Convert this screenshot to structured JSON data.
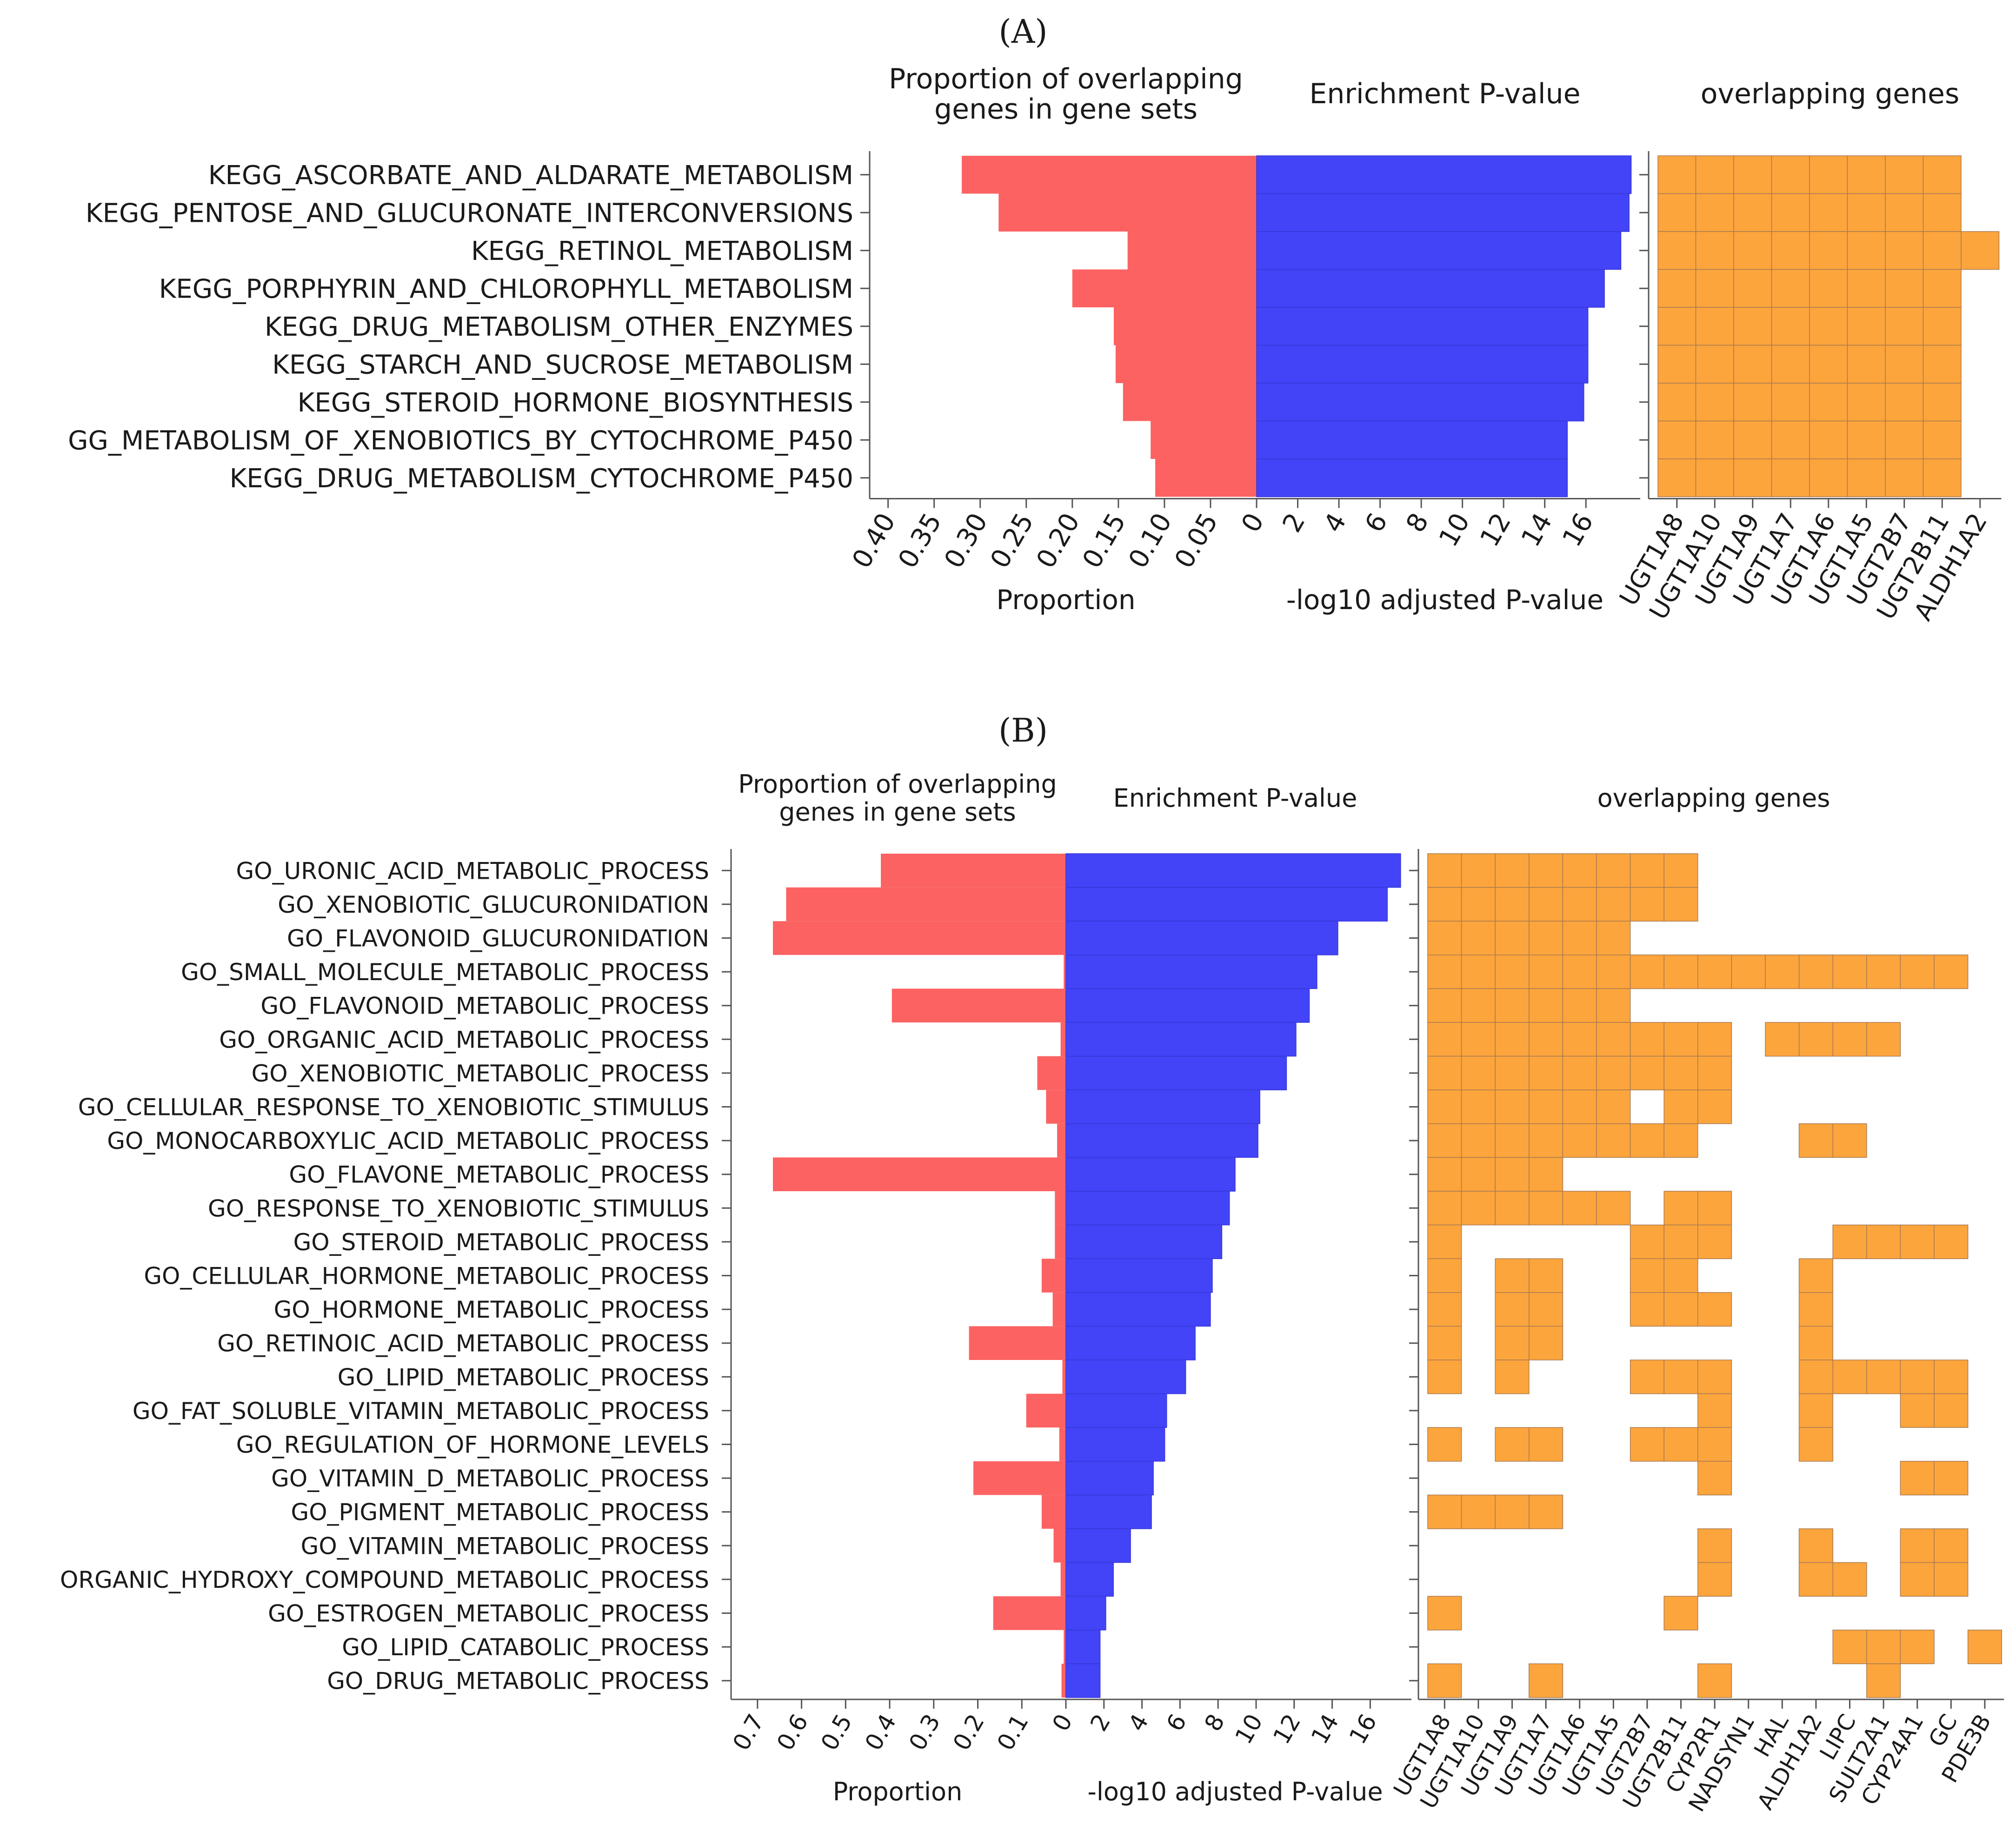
{
  "colors": {
    "proportion_bar": "#fc6262",
    "pvalue_bar": "#4343f7",
    "gene_cell": "#fca53c",
    "gene_cell_border": "#a97a52",
    "axis": "#555555"
  },
  "chart_data": [
    {
      "type": "bar",
      "panel": "(A)",
      "titles": {
        "proportion": [
          "Proportion of overlapping",
          "genes in gene sets"
        ],
        "pvalue": "Enrichment P-value",
        "genes": "overlapping genes"
      },
      "xlabels": {
        "proportion": "Proportion",
        "pvalue": "-log10 adjusted P-value"
      },
      "categories": [
        "KEGG_ASCORBATE_AND_ALDARATE_METABOLISM",
        "KEGG_PENTOSE_AND_GLUCURONATE_INTERCONVERSIONS",
        "KEGG_RETINOL_METABOLISM",
        "KEGG_PORPHYRIN_AND_CHLOROPHYLL_METABOLISM",
        "KEGG_DRUG_METABOLISM_OTHER_ENZYMES",
        "KEGG_STARCH_AND_SUCROSE_METABOLISM",
        "KEGG_STEROID_HORMONE_BIOSYNTHESIS",
        "GG_METABOLISM_OF_XENOBIOTICS_BY_CYTOCHROME_P450",
        "KEGG_DRUG_METABOLISM_CYTOCHROME_P450"
      ],
      "proportion": {
        "values": [
          0.32,
          0.28,
          0.14,
          0.2,
          0.155,
          0.153,
          0.145,
          0.115,
          0.11
        ],
        "xlim": [
          0,
          0.42
        ],
        "ticks": [
          0.4,
          0.35,
          0.3,
          0.25,
          0.2,
          0.15,
          0.1,
          0.05,
          0
        ],
        "tick_labels": [
          "0.40",
          "0.35",
          "0.30",
          "0.25",
          "0.20",
          "0.15",
          "0.10",
          "0.05",
          "0"
        ]
      },
      "pvalue": {
        "values": [
          18.2,
          18.1,
          17.7,
          16.9,
          16.1,
          16.1,
          15.9,
          15.1,
          15.1
        ],
        "xlim": [
          0,
          18.3
        ],
        "ticks": [
          0,
          2,
          4,
          6,
          8,
          10,
          12,
          14,
          16
        ],
        "tick_labels": [
          "0",
          "2",
          "4",
          "6",
          "8",
          "10",
          "12",
          "14",
          "16"
        ]
      },
      "genes": [
        "UGT1A8",
        "UGT1A10",
        "UGT1A9",
        "UGT1A7",
        "UGT1A6",
        "UGT1A5",
        "UGT2B7",
        "UGT2B11",
        "ALDH1A2"
      ],
      "matrix": [
        [
          1,
          1,
          1,
          1,
          1,
          1,
          1,
          1,
          0
        ],
        [
          1,
          1,
          1,
          1,
          1,
          1,
          1,
          1,
          0
        ],
        [
          1,
          1,
          1,
          1,
          1,
          1,
          1,
          1,
          1
        ],
        [
          1,
          1,
          1,
          1,
          1,
          1,
          1,
          1,
          0
        ],
        [
          1,
          1,
          1,
          1,
          1,
          1,
          1,
          1,
          0
        ],
        [
          1,
          1,
          1,
          1,
          1,
          1,
          1,
          1,
          0
        ],
        [
          1,
          1,
          1,
          1,
          1,
          1,
          1,
          1,
          0
        ],
        [
          1,
          1,
          1,
          1,
          1,
          1,
          1,
          1,
          0
        ],
        [
          1,
          1,
          1,
          1,
          1,
          1,
          1,
          1,
          0
        ]
      ]
    },
    {
      "type": "bar",
      "panel": "(B)",
      "titles": {
        "proportion": [
          "Proportion of overlapping",
          "genes in gene sets"
        ],
        "pvalue": "Enrichment P-value",
        "genes": "overlapping genes"
      },
      "xlabels": {
        "proportion": "Proportion",
        "pvalue": "-log10 adjusted P-value"
      },
      "categories": [
        "GO_URONIC_ACID_METABOLIC_PROCESS",
        "GO_XENOBIOTIC_GLUCURONIDATION",
        "GO_FLAVONOID_GLUCURONIDATION",
        "GO_SMALL_MOLECULE_METABOLIC_PROCESS",
        "GO_FLAVONOID_METABOLIC_PROCESS",
        "GO_ORGANIC_ACID_METABOLIC_PROCESS",
        "GO_XENOBIOTIC_METABOLIC_PROCESS",
        "GO_CELLULAR_RESPONSE_TO_XENOBIOTIC_STIMULUS",
        "GO_MONOCARBOXYLIC_ACID_METABOLIC_PROCESS",
        "GO_FLAVONE_METABOLIC_PROCESS",
        "GO_RESPONSE_TO_XENOBIOTIC_STIMULUS",
        "GO_STEROID_METABOLIC_PROCESS",
        "GO_CELLULAR_HORMONE_METABOLIC_PROCESS",
        "GO_HORMONE_METABOLIC_PROCESS",
        "GO_RETINOIC_ACID_METABOLIC_PROCESS",
        "GO_LIPID_METABOLIC_PROCESS",
        "GO_FAT_SOLUBLE_VITAMIN_METABOLIC_PROCESS",
        "GO_REGULATION_OF_HORMONE_LEVELS",
        "GO_VITAMIN_D_METABOLIC_PROCESS",
        "GO_PIGMENT_METABOLIC_PROCESS",
        "GO_VITAMIN_METABOLIC_PROCESS",
        "ORGANIC_HYDROXY_COMPOUND_METABOLIC_PROCESS",
        "GO_ESTROGEN_METABOLIC_PROCESS",
        "GO_LIPID_CATABOLIC_PROCESS",
        "GO_DRUG_METABOLIC_PROCESS"
      ],
      "proportion": {
        "values": [
          0.42,
          0.635,
          0.665,
          0.005,
          0.395,
          0.012,
          0.065,
          0.045,
          0.02,
          0.665,
          0.025,
          0.025,
          0.055,
          0.03,
          0.22,
          0.008,
          0.09,
          0.015,
          0.21,
          0.055,
          0.028,
          0.012,
          0.165,
          0.005,
          0.01
        ],
        "xlim": [
          0,
          0.76
        ],
        "ticks": [
          0.7,
          0.6,
          0.5,
          0.4,
          0.3,
          0.2,
          0.1,
          0
        ],
        "tick_labels": [
          "0.7",
          "0.6",
          "0.5",
          "0.4",
          "0.3",
          "0.2",
          "0.1",
          "0"
        ]
      },
      "pvalue": {
        "values": [
          17.6,
          16.9,
          14.3,
          13.2,
          12.8,
          12.1,
          11.6,
          10.2,
          10.1,
          8.9,
          8.6,
          8.2,
          7.7,
          7.6,
          6.8,
          6.3,
          5.3,
          5.2,
          4.6,
          4.5,
          3.4,
          2.5,
          2.1,
          1.8,
          1.8
        ],
        "xlim": [
          0,
          17.8
        ],
        "ticks": [
          0,
          2,
          4,
          6,
          8,
          10,
          12,
          14,
          16
        ],
        "tick_labels": [
          "0",
          "2",
          "4",
          "6",
          "8",
          "10",
          "12",
          "14",
          "16"
        ]
      },
      "genes": [
        "UGT1A8",
        "UGT1A10",
        "UGT1A9",
        "UGT1A7",
        "UGT1A6",
        "UGT1A5",
        "UGT2B7",
        "UGT2B11",
        "CYP2R1",
        "NADSYN1",
        "HAL",
        "ALDH1A2",
        "LIPC",
        "SULT2A1",
        "CYP24A1",
        "GC",
        "PDE3B"
      ],
      "matrix": [
        [
          1,
          1,
          1,
          1,
          1,
          1,
          1,
          1,
          0,
          0,
          0,
          0,
          0,
          0,
          0,
          0,
          0
        ],
        [
          1,
          1,
          1,
          1,
          1,
          1,
          1,
          1,
          0,
          0,
          0,
          0,
          0,
          0,
          0,
          0,
          0
        ],
        [
          1,
          1,
          1,
          1,
          1,
          1,
          0,
          0,
          0,
          0,
          0,
          0,
          0,
          0,
          0,
          0,
          0
        ],
        [
          1,
          1,
          1,
          1,
          1,
          1,
          1,
          1,
          1,
          1,
          1,
          1,
          1,
          1,
          1,
          1,
          0
        ],
        [
          1,
          1,
          1,
          1,
          1,
          1,
          0,
          0,
          0,
          0,
          0,
          0,
          0,
          0,
          0,
          0,
          0
        ],
        [
          1,
          1,
          1,
          1,
          1,
          1,
          1,
          1,
          1,
          0,
          1,
          1,
          1,
          1,
          0,
          0,
          0
        ],
        [
          1,
          1,
          1,
          1,
          1,
          1,
          1,
          1,
          1,
          0,
          0,
          0,
          0,
          0,
          0,
          0,
          0
        ],
        [
          1,
          1,
          1,
          1,
          1,
          1,
          0,
          1,
          1,
          0,
          0,
          0,
          0,
          0,
          0,
          0,
          0
        ],
        [
          1,
          1,
          1,
          1,
          1,
          1,
          1,
          1,
          0,
          0,
          0,
          1,
          1,
          0,
          0,
          0,
          0
        ],
        [
          1,
          1,
          1,
          1,
          0,
          0,
          0,
          0,
          0,
          0,
          0,
          0,
          0,
          0,
          0,
          0,
          0
        ],
        [
          1,
          1,
          1,
          1,
          1,
          1,
          0,
          1,
          1,
          0,
          0,
          0,
          0,
          0,
          0,
          0,
          0
        ],
        [
          1,
          0,
          0,
          0,
          0,
          0,
          1,
          1,
          1,
          0,
          0,
          0,
          1,
          1,
          1,
          1,
          0
        ],
        [
          1,
          0,
          1,
          1,
          0,
          0,
          1,
          1,
          0,
          0,
          0,
          1,
          0,
          0,
          0,
          0,
          0
        ],
        [
          1,
          0,
          1,
          1,
          0,
          0,
          1,
          1,
          1,
          0,
          0,
          1,
          0,
          0,
          0,
          0,
          0
        ],
        [
          1,
          0,
          1,
          1,
          0,
          0,
          0,
          0,
          0,
          0,
          0,
          1,
          0,
          0,
          0,
          0,
          0
        ],
        [
          1,
          0,
          1,
          0,
          0,
          0,
          1,
          1,
          1,
          0,
          0,
          1,
          1,
          1,
          1,
          1,
          0
        ],
        [
          0,
          0,
          0,
          0,
          0,
          0,
          0,
          0,
          1,
          0,
          0,
          1,
          0,
          0,
          1,
          1,
          0
        ],
        [
          1,
          0,
          1,
          1,
          0,
          0,
          1,
          1,
          1,
          0,
          0,
          1,
          0,
          0,
          0,
          0,
          0
        ],
        [
          0,
          0,
          0,
          0,
          0,
          0,
          0,
          0,
          1,
          0,
          0,
          0,
          0,
          0,
          1,
          1,
          0
        ],
        [
          1,
          1,
          1,
          1,
          0,
          0,
          0,
          0,
          0,
          0,
          0,
          0,
          0,
          0,
          0,
          0,
          0
        ],
        [
          0,
          0,
          0,
          0,
          0,
          0,
          0,
          0,
          1,
          0,
          0,
          1,
          0,
          0,
          1,
          1,
          0
        ],
        [
          0,
          0,
          0,
          0,
          0,
          0,
          0,
          0,
          1,
          0,
          0,
          1,
          1,
          0,
          1,
          1,
          0
        ],
        [
          1,
          0,
          0,
          0,
          0,
          0,
          0,
          1,
          0,
          0,
          0,
          0,
          0,
          0,
          0,
          0,
          0
        ],
        [
          0,
          0,
          0,
          0,
          0,
          0,
          0,
          0,
          0,
          0,
          0,
          0,
          1,
          1,
          1,
          0,
          1
        ],
        [
          1,
          0,
          0,
          1,
          0,
          0,
          0,
          0,
          1,
          0,
          0,
          0,
          0,
          1,
          0,
          0,
          0
        ]
      ]
    }
  ]
}
